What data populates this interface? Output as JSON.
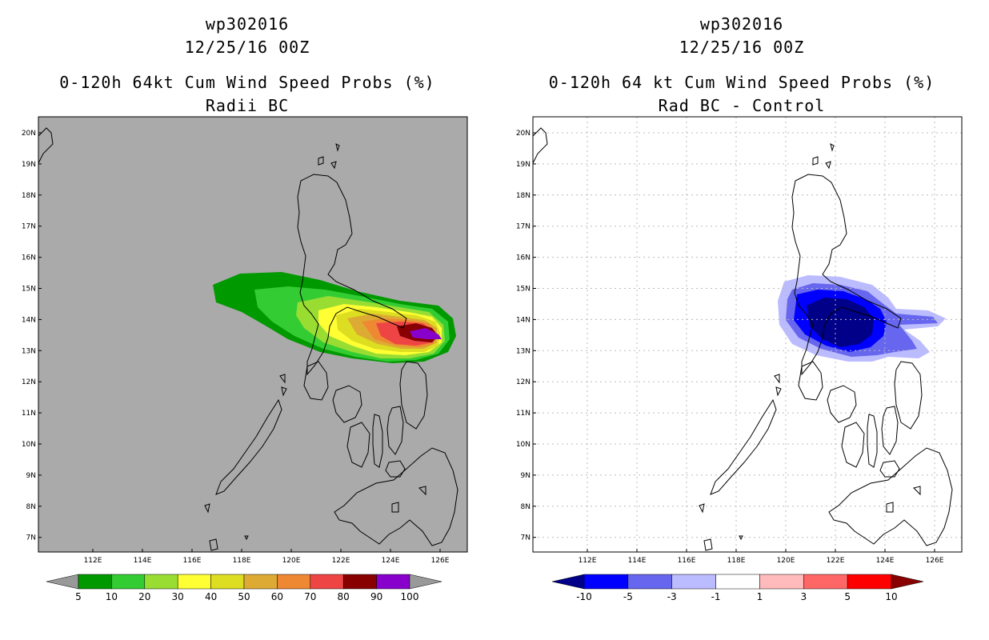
{
  "panels": [
    {
      "storm_id": "wp302016",
      "date": "12/25/16 00Z",
      "title": "0-120h 64kt Cum Wind Speed Probs (%)",
      "subtitle": "Radii BC",
      "background": "#aaaaaa",
      "lat_labels": [
        "20N",
        "19N",
        "18N",
        "17N",
        "16N",
        "15N",
        "14N",
        "13N",
        "12N",
        "11N",
        "10N",
        "9N",
        "8N",
        "7N"
      ],
      "lon_labels": [
        "112E",
        "114E",
        "116E",
        "118E",
        "120E",
        "122E",
        "124E",
        "126E"
      ],
      "colorbar": {
        "colors": [
          "#009900",
          "#33cc33",
          "#99dd33",
          "#ffff33",
          "#dddd22",
          "#ddaa33",
          "#ee8833",
          "#ee4444",
          "#880000",
          "#8800cc"
        ],
        "labels": [
          "5",
          "10",
          "20",
          "30",
          "40",
          "50",
          "60",
          "70",
          "80",
          "90",
          "100"
        ],
        "end_colors": [
          "#999999",
          "#999999"
        ]
      }
    },
    {
      "storm_id": "wp302016",
      "date": "12/25/16 00Z",
      "title": "0-120h 64 kt Cum Wind Speed Probs (%)",
      "subtitle": "Rad BC - Control",
      "background": "#ffffff",
      "lat_labels": [
        "20N",
        "19N",
        "18N",
        "17N",
        "16N",
        "15N",
        "14N",
        "13N",
        "12N",
        "11N",
        "10N",
        "9N",
        "8N",
        "7N"
      ],
      "lon_labels": [
        "112E",
        "114E",
        "116E",
        "118E",
        "120E",
        "122E",
        "124E",
        "126E"
      ],
      "colorbar": {
        "colors": [
          "#0000ff",
          "#6666ee",
          "#bbbbff",
          "#ffffff",
          "#ffbbbb",
          "#ff6666",
          "#ff0000"
        ],
        "labels": [
          "-10",
          "-5",
          "-3",
          "-1",
          "1",
          "3",
          "5",
          "10"
        ],
        "end_colors": [
          "#000088",
          "#880000"
        ]
      }
    }
  ]
}
